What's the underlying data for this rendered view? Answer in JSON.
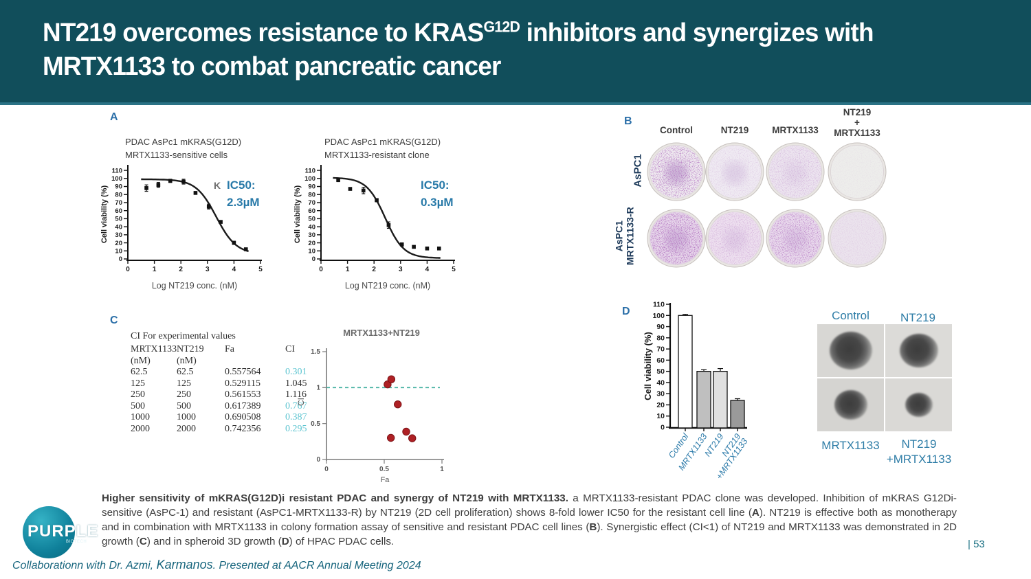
{
  "colors": {
    "header_bg": "#114e5b",
    "header_accent": "#2a7285",
    "panel_label_blue": "#2b6fa8",
    "ic50_blue": "#2779a8",
    "ci_teal": "#5cc4d0",
    "scatter_point_red": "#ae2024",
    "dashed_line_teal": "#3fae9e",
    "footer_teal": "#17657d",
    "well_stain_purple": "#7a3b8f"
  },
  "slide": {
    "title_pre": "NT219 overcomes resistance to KRAS",
    "title_sup": "G12D",
    "title_post": " inhibitors and synergizes with",
    "title_line2": "MRTX1133 to combat pancreatic cancer",
    "page_number": "| 53",
    "footer_part1": "Collaborationn with Dr. Azmi, ",
    "footer_karmanos": "Karmanos",
    "footer_part2": ". Presented at AACR Annual Meeting 2024",
    "logo_text": "PURPLE",
    "logo_sub": "BIOTECH"
  },
  "panels": {
    "a": {
      "label": "A",
      "chart1_title": [
        "PDAC AsPc1 mKRAS(G12D)",
        "MRTX1133-sensitive cells"
      ],
      "chart2_title": [
        "PDAC AsPc1 mKRAS(G12D)",
        "MRTX1133-resistant clone"
      ],
      "ic50_1_label": "IC50:",
      "ic50_1_value": "2.3µM",
      "ic50_2_label": "IC50:",
      "ic50_2_value": "0.3µM",
      "stray_glyph": "K"
    },
    "b": {
      "label": "B",
      "col_headers": [
        [
          "Control"
        ],
        [
          "NT219"
        ],
        [
          "MRTX1133"
        ],
        [
          "NT219",
          "+",
          "MRTX1133"
        ]
      ],
      "row1_label": [
        "AsPC1"
      ],
      "row2_label": [
        "AsPC1",
        "MRTX1133-R"
      ],
      "wells": {
        "rows": [
          {
            "cells": [
              {
                "base": "#eee8ef",
                "speckle": 0.85,
                "smudge": 0.4
              },
              {
                "base": "#efeaf2",
                "speckle": 0.18,
                "smudge": 0.18
              },
              {
                "base": "#ece4ef",
                "speckle": 0.32,
                "smudge": 0.1
              },
              {
                "base": "#ededeb",
                "speckle": 0.06,
                "smudge": 0.0
              }
            ]
          },
          {
            "cells": [
              {
                "base": "#e6d4ea",
                "speckle": 1.0,
                "smudge": 0.28
              },
              {
                "base": "#eddfef",
                "speckle": 0.35,
                "smudge": 0.14
              },
              {
                "base": "#e8d8ec",
                "speckle": 0.75,
                "smudge": 0.16
              },
              {
                "base": "#ebe3ed",
                "speckle": 0.15,
                "smudge": 0.0
              }
            ]
          }
        ]
      }
    },
    "c": {
      "label": "C",
      "table": {
        "title": "CI For experimental values",
        "col_headers": [
          "MRTX1133",
          "NT219",
          "Fa",
          "CI"
        ],
        "col_subheaders": [
          "(nM)",
          "(nM)",
          "",
          ""
        ],
        "rows": [
          {
            "mrtx": "62.5",
            "nt219": "62.5",
            "fa": "0.557564",
            "ci": "0.301",
            "ci_teal": true
          },
          {
            "mrtx": "125",
            "nt219": "125",
            "fa": "0.529115",
            "ci": "1.045",
            "ci_teal": false
          },
          {
            "mrtx": "250",
            "nt219": "250",
            "fa": "0.561553",
            "ci": "1.116",
            "ci_teal": false
          },
          {
            "mrtx": "500",
            "nt219": "500",
            "fa": "0.617389",
            "ci": "0.767",
            "ci_teal": true
          },
          {
            "mrtx": "1000",
            "nt219": "1000",
            "fa": "0.690508",
            "ci": "0.387",
            "ci_teal": true
          },
          {
            "mrtx": "2000",
            "nt219": "2000",
            "fa": "0.742356",
            "ci": "0.295",
            "ci_teal": true
          }
        ]
      },
      "scatter_title": "MRTX1133+NT219",
      "scatter_ylabel": "CI"
    },
    "d": {
      "label": "D",
      "spheroids": {
        "top_left_label": "Control",
        "top_right_label": "NT219",
        "bottom_left_label": "MRTX1133",
        "bottom_right_label": [
          "NT219",
          "+MRTX1133"
        ],
        "cells": [
          {
            "bg": "#d8d7d4",
            "size": 62
          },
          {
            "bg": "#dcdbd8",
            "size": 56
          },
          {
            "bg": "#d5d4d1",
            "size": 48
          },
          {
            "bg": "#dad9d6",
            "size": 40
          }
        ]
      }
    }
  },
  "caption": {
    "segments": [
      {
        "t": "Higher sensitivity of mKRAS(G12D)i resistant PDAC and synergy of NT219 with MRTX1133. ",
        "b": true
      },
      {
        "t": "a MRTX1133-resistant PDAC clone was developed. Inhibition of mKRAS G12Di-sensitive (AsPC-1) and resistant (AsPC1-MRTX1133-R) by NT219 (2D cell proliferation) shows 8-fold lower IC50 for the resistant cell line (",
        "b": false
      },
      {
        "t": "A",
        "b": true
      },
      {
        "t": "). NT219 is effective both as monotherapy and in combination with MRTX1133 in colony formation assay of sensitive and resistant PDAC cell lines (",
        "b": false
      },
      {
        "t": "B",
        "b": true
      },
      {
        "t": "). Synergistic effect (CI<1) of NT219 and MRTX1133 was demonstrated in 2D growth (",
        "b": false
      },
      {
        "t": "C",
        "b": true
      },
      {
        "t": ") and in spheroid 3D growth (",
        "b": false
      },
      {
        "t": "D",
        "b": true
      },
      {
        "t": ") of HPAC PDAC cells.",
        "b": false
      }
    ]
  },
  "chart_data": [
    {
      "type": "dose",
      "title": "PDAC AsPc1 mKRAS(G12D) MRTX1133-sensitive cells",
      "xlabel": "Log NT219 conc. (nM)",
      "ylabel": "Cell viability (%)",
      "xlim": [
        0,
        5
      ],
      "ylim": [
        0,
        110
      ],
      "xticks": [
        0,
        1,
        2,
        3,
        4,
        5
      ],
      "yticks": [
        0,
        10,
        20,
        30,
        40,
        50,
        60,
        70,
        80,
        90,
        100,
        110
      ],
      "points": [
        [
          0.7,
          88,
          4
        ],
        [
          1.15,
          92,
          3
        ],
        [
          1.6,
          97,
          2
        ],
        [
          2.1,
          96,
          3
        ],
        [
          2.55,
          82,
          0
        ],
        [
          3.05,
          65,
          3
        ],
        [
          3.5,
          46,
          0
        ],
        [
          4.0,
          20,
          2
        ],
        [
          4.45,
          12,
          0
        ]
      ],
      "curve": {
        "top": 99,
        "bottom": 6,
        "logic50": 3.33,
        "hill": 1.15,
        "xmin": 0.5,
        "xmax": 4.55
      },
      "ic50_uM": 2.3
    },
    {
      "type": "dose",
      "title": "PDAC AsPc1 mKRAS(G12D) MRTX1133-resistant clone",
      "xlabel": "Log NT219 conc. (nM)",
      "ylabel": "Cell viability (%)",
      "xlim": [
        0,
        5
      ],
      "ylim": [
        0,
        110
      ],
      "xticks": [
        0,
        1,
        2,
        3,
        4,
        5
      ],
      "yticks": [
        0,
        10,
        20,
        30,
        40,
        50,
        60,
        70,
        80,
        90,
        100,
        110
      ],
      "points": [
        [
          0.65,
          98,
          2
        ],
        [
          1.1,
          87,
          0
        ],
        [
          1.6,
          85,
          4
        ],
        [
          2.1,
          73,
          2
        ],
        [
          2.55,
          42,
          4
        ],
        [
          3.05,
          18,
          2
        ],
        [
          3.5,
          15,
          0
        ],
        [
          4.0,
          13,
          0
        ],
        [
          4.45,
          13,
          0
        ]
      ],
      "curve": {
        "top": 101,
        "bottom": 1,
        "logic50": 2.42,
        "hill": 1.25,
        "xmin": 0.45,
        "xmax": 4.5
      },
      "ic50_uM": 0.3
    },
    {
      "type": "ci_scatter",
      "title": "MRTX1133+NT219",
      "xlabel": "Fa",
      "ylabel": "CI",
      "xlim": [
        0,
        1
      ],
      "ylim": [
        0,
        1.5
      ],
      "xticks": [
        0,
        0.5,
        1
      ],
      "yticks": [
        0,
        0.5,
        1,
        1.5
      ],
      "dashed_y": 1,
      "points": [
        [
          0.557564,
          0.301
        ],
        [
          0.529115,
          1.045
        ],
        [
          0.561553,
          1.116
        ],
        [
          0.617389,
          0.767
        ],
        [
          0.690508,
          0.387
        ],
        [
          0.742356,
          0.295
        ]
      ]
    },
    {
      "type": "bar",
      "ylabel": "Cell viability (%)",
      "ylim": [
        0,
        110
      ],
      "yticks": [
        0,
        10,
        20,
        30,
        40,
        50,
        60,
        70,
        80,
        90,
        100,
        110
      ],
      "categories": [
        [
          "Control"
        ],
        [
          "MRTX1133"
        ],
        [
          "NT219"
        ],
        [
          "NT219",
          "+MRTX1133"
        ]
      ],
      "values": [
        100,
        50,
        50,
        24
      ],
      "errors": [
        1,
        1.5,
        2.5,
        1.5
      ],
      "fills": [
        "#ffffff",
        "#bfbfbf",
        "#e0e0e0",
        "#9a9a9a"
      ]
    }
  ]
}
